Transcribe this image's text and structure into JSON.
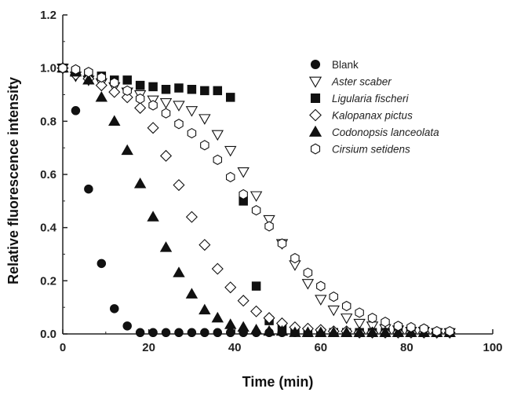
{
  "chart_data": {
    "type": "scatter",
    "title": "",
    "xlabel": "Time (min)",
    "ylabel": "Relative fluorescence intensity",
    "xlim": [
      0,
      100
    ],
    "ylim": [
      0,
      1.2
    ],
    "xticks": [
      0,
      20,
      40,
      60,
      80,
      100
    ],
    "yticks": [
      0.0,
      0.2,
      0.4,
      0.6,
      0.8,
      1.0,
      1.2
    ],
    "xtick_labels": [
      "0",
      "20",
      "40",
      "60",
      "80",
      "100"
    ],
    "ytick_labels": [
      "0.0",
      "0.2",
      "0.4",
      "0.6",
      "0.8",
      "1.0",
      "1.2"
    ],
    "grid": false,
    "legend_position": "upper-right",
    "series": [
      {
        "name": "Blank",
        "italic": false,
        "marker": "circle",
        "filled": true,
        "x": [
          0,
          3,
          6,
          9,
          12,
          15,
          18,
          21,
          24,
          27,
          30,
          33,
          36,
          39,
          42,
          45,
          48,
          51,
          54,
          57,
          60,
          63,
          66,
          69,
          72,
          75,
          78,
          81,
          84,
          87,
          90
        ],
        "y": [
          1.0,
          0.84,
          0.545,
          0.265,
          0.095,
          0.03,
          0.005,
          0.005,
          0.005,
          0.005,
          0.005,
          0.005,
          0.005,
          0.005,
          0.005,
          0.005,
          0.005,
          0.005,
          0.005,
          0.005,
          0.005,
          0.005,
          0.005,
          0.005,
          0.005,
          0.005,
          0.005,
          0.005,
          0.005,
          0.005,
          0.005
        ]
      },
      {
        "name": "Aster scaber",
        "italic": true,
        "marker": "triangle-down",
        "filled": false,
        "x": [
          0,
          3,
          6,
          9,
          12,
          15,
          18,
          21,
          24,
          27,
          30,
          33,
          36,
          39,
          42,
          45,
          48,
          51,
          54,
          57,
          60,
          63,
          66,
          69,
          72,
          75,
          78,
          81,
          84,
          87,
          90
        ],
        "y": [
          1.0,
          0.97,
          0.955,
          0.945,
          0.93,
          0.91,
          0.9,
          0.88,
          0.87,
          0.86,
          0.84,
          0.81,
          0.75,
          0.69,
          0.61,
          0.52,
          0.43,
          0.34,
          0.26,
          0.19,
          0.13,
          0.09,
          0.06,
          0.04,
          0.03,
          0.02,
          0.015,
          0.01,
          0.01,
          0.005,
          0.005
        ]
      },
      {
        "name": "Ligularia fischeri",
        "italic": true,
        "marker": "square",
        "filled": true,
        "x": [
          0,
          3,
          6,
          9,
          12,
          15,
          18,
          21,
          24,
          27,
          30,
          33,
          36,
          39,
          42,
          45,
          48,
          51,
          54,
          57,
          60,
          63,
          66,
          69,
          72,
          75,
          78,
          81,
          84,
          87,
          90
        ],
        "y": [
          1.0,
          0.985,
          0.975,
          0.97,
          0.955,
          0.955,
          0.935,
          0.93,
          0.92,
          0.925,
          0.92,
          0.915,
          0.915,
          0.89,
          0.5,
          0.18,
          0.05,
          0.02,
          0.01,
          0.005,
          0.005,
          0.005,
          0.005,
          0.005,
          0.005,
          0.005,
          0.005,
          0.005,
          0.005,
          0.005,
          0.005
        ]
      },
      {
        "name": "Kalopanax pictus",
        "italic": true,
        "marker": "diamond",
        "filled": false,
        "x": [
          0,
          3,
          6,
          9,
          12,
          15,
          18,
          21,
          24,
          27,
          30,
          33,
          36,
          39,
          42,
          45,
          48,
          51,
          54,
          57,
          60,
          63,
          66,
          69,
          72,
          75,
          78,
          81,
          84,
          87,
          90
        ],
        "y": [
          1.0,
          0.975,
          0.96,
          0.935,
          0.91,
          0.89,
          0.85,
          0.775,
          0.67,
          0.56,
          0.44,
          0.335,
          0.245,
          0.175,
          0.125,
          0.085,
          0.06,
          0.04,
          0.025,
          0.02,
          0.015,
          0.01,
          0.01,
          0.005,
          0.005,
          0.005,
          0.005,
          0.005,
          0.005,
          0.005,
          0.005
        ]
      },
      {
        "name": "Codonopsis lanceolata",
        "italic": true,
        "marker": "triangle-up",
        "filled": true,
        "x": [
          0,
          3,
          6,
          9,
          12,
          15,
          18,
          21,
          24,
          27,
          30,
          33,
          36,
          39,
          42,
          45,
          48,
          51,
          54,
          57,
          60,
          63,
          66,
          69,
          72,
          75,
          78,
          81,
          84,
          87,
          90
        ],
        "y": [
          1.0,
          0.985,
          0.955,
          0.89,
          0.8,
          0.69,
          0.565,
          0.44,
          0.325,
          0.23,
          0.15,
          0.09,
          0.06,
          0.035,
          0.025,
          0.015,
          0.01,
          0.01,
          0.005,
          0.005,
          0.005,
          0.005,
          0.005,
          0.005,
          0.005,
          0.005,
          0.005,
          0.005,
          0.005,
          0.005,
          0.005
        ]
      },
      {
        "name": "Cirsium setidens",
        "italic": true,
        "marker": "hexagon",
        "filled": false,
        "x": [
          0,
          3,
          6,
          9,
          12,
          15,
          18,
          21,
          24,
          27,
          30,
          33,
          36,
          39,
          42,
          45,
          48,
          51,
          54,
          57,
          60,
          63,
          66,
          69,
          72,
          75,
          78,
          81,
          84,
          87,
          90
        ],
        "y": [
          1.0,
          0.995,
          0.985,
          0.965,
          0.945,
          0.915,
          0.885,
          0.86,
          0.83,
          0.79,
          0.755,
          0.71,
          0.655,
          0.59,
          0.525,
          0.465,
          0.405,
          0.34,
          0.285,
          0.23,
          0.18,
          0.14,
          0.105,
          0.08,
          0.06,
          0.045,
          0.03,
          0.025,
          0.02,
          0.01,
          0.01
        ]
      }
    ]
  }
}
